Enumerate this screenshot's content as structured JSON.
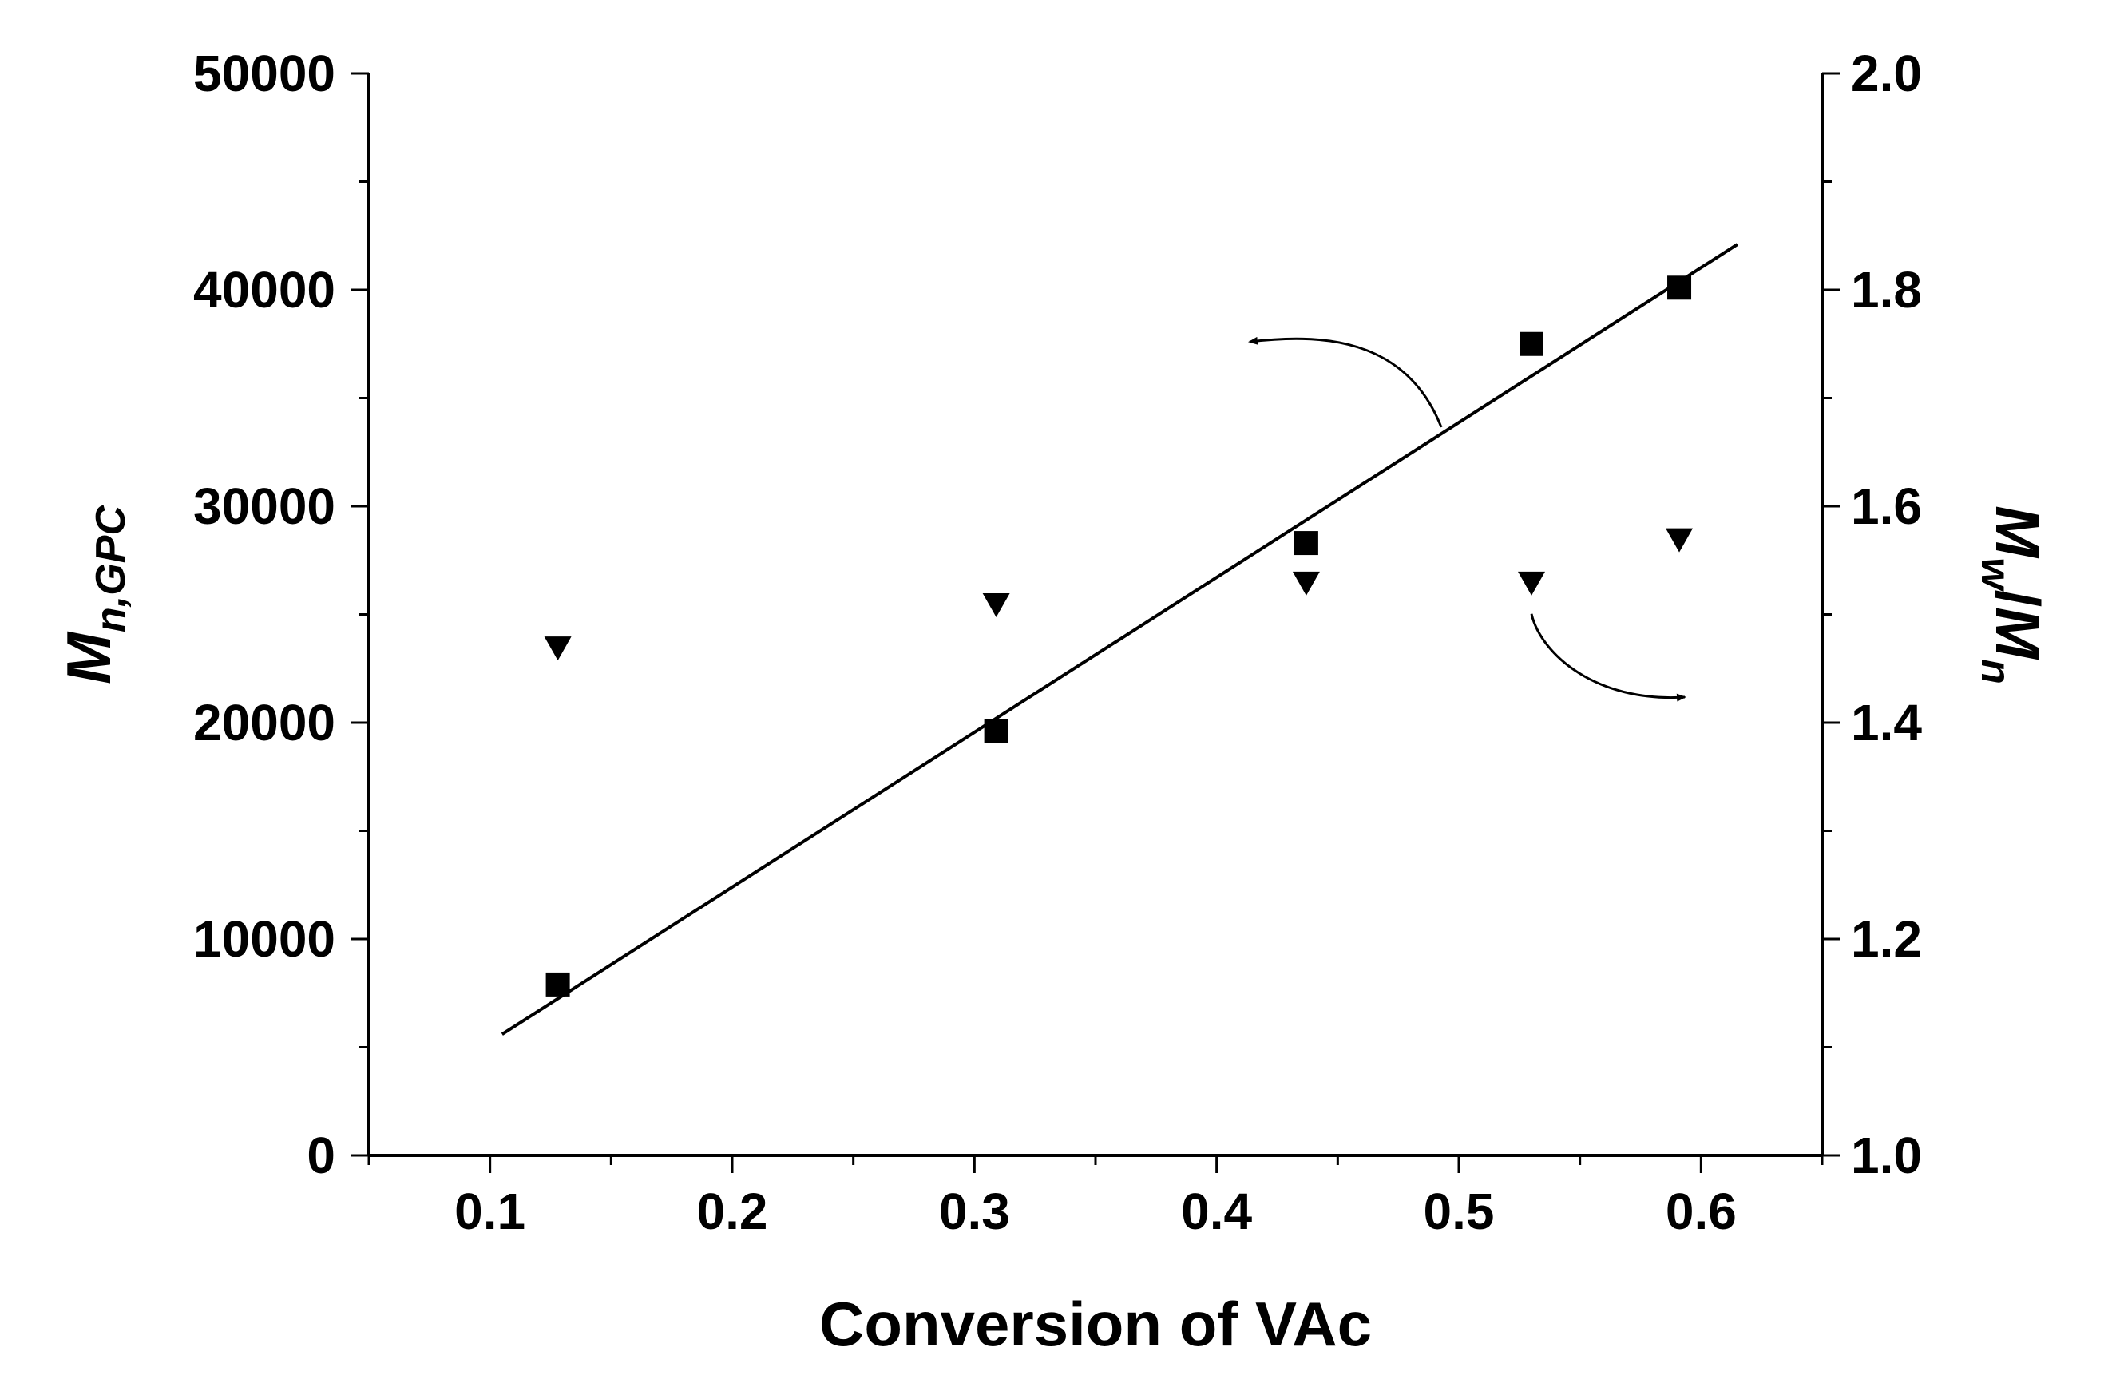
{
  "chart_data": {
    "type": "scatter",
    "title": "",
    "xlabel": "Conversion of VAc",
    "ylabel_left": {
      "main": "M",
      "sub": "n,GPC"
    },
    "ylabel_right": {
      "main1": "M",
      "sub1": "w",
      "sep": "/",
      "main2": "M",
      "sub2": "n"
    },
    "xlim": [
      0.05,
      0.65
    ],
    "ylim_left": [
      0,
      50000
    ],
    "ylim_right": [
      1.0,
      2.0
    ],
    "x_ticks": [
      0.1,
      0.2,
      0.3,
      0.4,
      0.5,
      0.6
    ],
    "x_tick_labels": [
      "0.1",
      "0.2",
      "0.3",
      "0.4",
      "0.5",
      "0.6"
    ],
    "y_left_ticks": [
      0,
      10000,
      20000,
      30000,
      40000,
      50000
    ],
    "y_left_tick_labels": [
      "0",
      "10000",
      "20000",
      "30000",
      "40000",
      "50000"
    ],
    "y_right_ticks": [
      1.0,
      1.2,
      1.4,
      1.6,
      1.8,
      2.0
    ],
    "y_right_tick_labels": [
      "1.0",
      "1.2",
      "1.4",
      "1.6",
      "1.8",
      "2.0"
    ],
    "series": [
      {
        "name": "Mn,GPC",
        "axis": "left",
        "marker": "square",
        "x": [
          0.128,
          0.309,
          0.437,
          0.53,
          0.591
        ],
        "y": [
          7900,
          19600,
          28300,
          37500,
          40100
        ]
      },
      {
        "name": "Mw/Mn",
        "axis": "right",
        "marker": "triangle-down",
        "x": [
          0.128,
          0.309,
          0.437,
          0.53,
          0.591
        ],
        "y": [
          1.47,
          1.51,
          1.53,
          1.53,
          1.57
        ]
      }
    ],
    "fit_line": {
      "axis": "left",
      "x": [
        0.105,
        0.615
      ],
      "y": [
        5600,
        42100
      ]
    },
    "annotations": [
      {
        "type": "arrow",
        "points_to": "left-axis",
        "near_series": "Mn,GPC"
      },
      {
        "type": "arrow",
        "points_to": "right-axis",
        "near_series": "Mw/Mn"
      }
    ],
    "colors": {
      "marker": "#000000",
      "line": "#000000"
    }
  }
}
